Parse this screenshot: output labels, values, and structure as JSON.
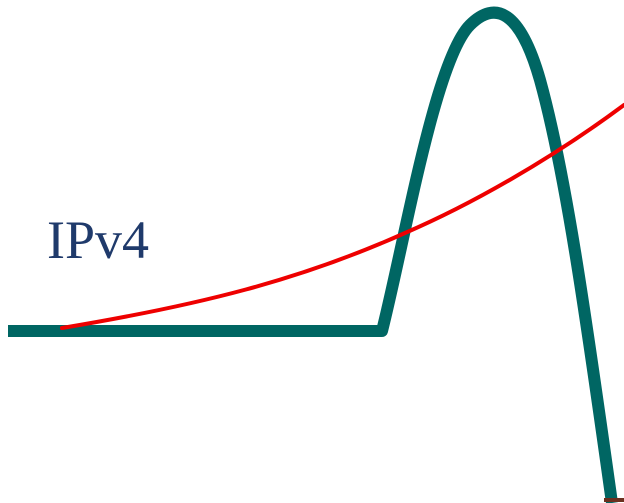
{
  "diagram": {
    "label": "IPv4",
    "colors": {
      "background": "#ffffff",
      "label": "#1f3a6b",
      "teal_curve": "#006663",
      "red_curve": "#ee0000",
      "bottom_mark": "#6b2f1f"
    },
    "curves": [
      {
        "name": "teal-bell-curve",
        "shape": "flat line rising to a sharp peak then falling steeply"
      },
      {
        "name": "red-growth-curve",
        "shape": "gently rising exponential curve"
      }
    ]
  }
}
